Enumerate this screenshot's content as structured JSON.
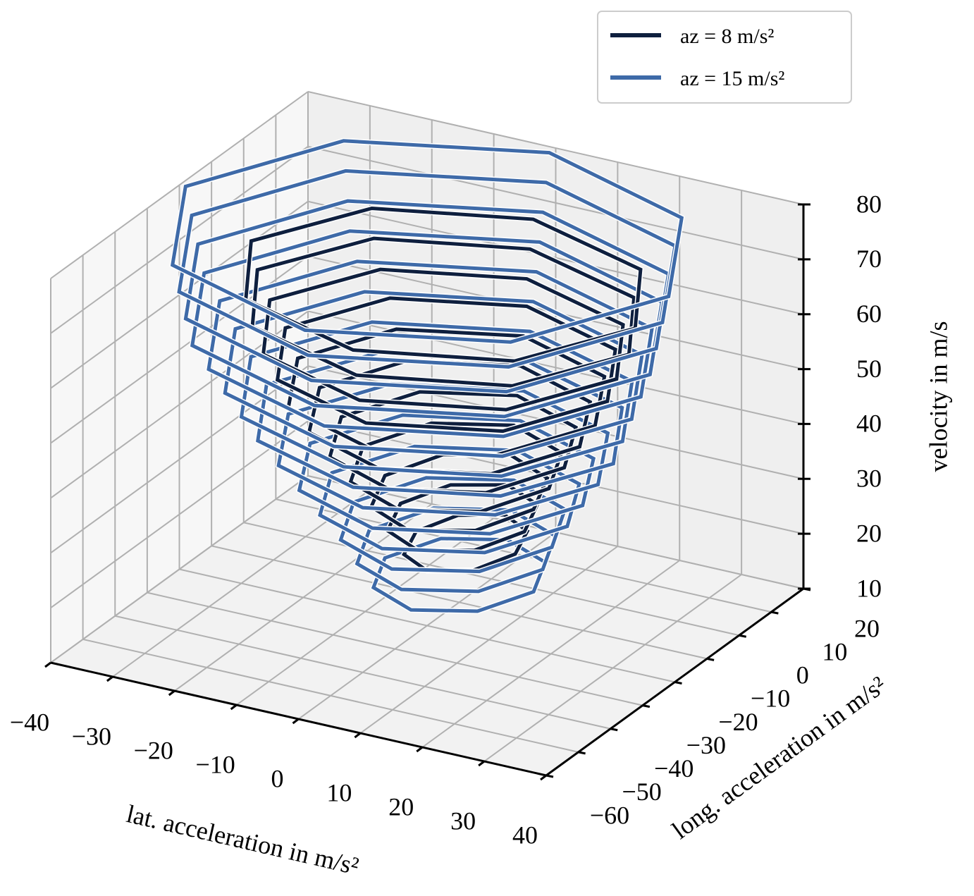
{
  "chart_data": {
    "type": "contour3d",
    "xlabel": "lat. acceleration in m/s²",
    "ylabel": "long. acceleration in m/s²",
    "zlabel": "velocity in m/s",
    "xlim": [
      -40,
      40
    ],
    "ylim": [
      -60,
      20
    ],
    "zlim": [
      10,
      80
    ],
    "xticks": [
      {
        "value": -40,
        "label": "−40"
      },
      {
        "value": -30,
        "label": "−30"
      },
      {
        "value": -20,
        "label": "−20"
      },
      {
        "value": -10,
        "label": "−10"
      },
      0,
      10,
      20,
      30,
      40
    ],
    "yticks": [
      {
        "value": -60,
        "label": "−60"
      },
      {
        "value": -50,
        "label": "−50"
      },
      {
        "value": -40,
        "label": "−40"
      },
      {
        "value": -30,
        "label": "−30"
      },
      {
        "value": -20,
        "label": "−20"
      },
      {
        "value": -10,
        "label": "−10"
      },
      0,
      10,
      20
    ],
    "zticks": [
      10,
      20,
      30,
      40,
      50,
      60,
      70,
      80
    ],
    "grid": true,
    "legend": "upper right",
    "series": [
      {
        "name": "az = 8 m/s²",
        "color": "#0e1f3e",
        "z": [
          20,
          25,
          30,
          35,
          40,
          45,
          50,
          55,
          60,
          65,
          70
        ],
        "x": [
          [
            8,
            5.6,
            0,
            -5.6,
            -8,
            -5.6,
            0,
            5.6
          ],
          [
            10,
            7,
            0,
            -7,
            -10,
            -7,
            0,
            7
          ],
          [
            12,
            8.4,
            0,
            -8.4,
            -12,
            -8.4,
            0,
            8.4
          ],
          [
            15,
            10.5,
            0,
            -10.5,
            -15,
            -10.5,
            0,
            10.5
          ],
          [
            18,
            12.6,
            0,
            -12.6,
            -18,
            -12.6,
            0,
            12.6
          ],
          [
            21,
            14.7,
            0,
            -14.7,
            -21,
            -14.7,
            0,
            14.7
          ],
          [
            24,
            16.8,
            0,
            -16.8,
            -24,
            -16.8,
            0,
            16.8
          ],
          [
            26,
            18.2,
            0,
            -18.2,
            -26,
            -18.2,
            0,
            18.2
          ],
          [
            28,
            19.6,
            0,
            -19.6,
            -28,
            -19.6,
            0,
            19.6
          ],
          [
            30,
            21,
            0,
            -21,
            -30,
            -21,
            0,
            21
          ],
          [
            31,
            21.7,
            0,
            -21.7,
            -31,
            -21.7,
            0,
            21.7
          ]
        ],
        "y": [
          [
            -8,
            0.4,
            4,
            0.4,
            -8,
            -16.4,
            -20,
            -16.4
          ],
          [
            -9,
            0.8,
            5,
            0.8,
            -9,
            -18.8,
            -23,
            -18.8
          ],
          [
            -10,
            1.2,
            6,
            1.2,
            -10,
            -21.2,
            -26,
            -21.2
          ],
          [
            -11,
            1.6,
            7,
            1.6,
            -11,
            -23.6,
            -29,
            -23.6
          ],
          [
            -12,
            2,
            8,
            2,
            -12,
            -26,
            -32,
            -26
          ],
          [
            -13,
            2.4,
            9,
            2.4,
            -13,
            -28.4,
            -35,
            -28.4
          ],
          [
            -14,
            2.8,
            10,
            2.8,
            -14,
            -30.8,
            -38,
            -30.8
          ],
          [
            -14,
            3.5,
            11,
            3.5,
            -14,
            -31.5,
            -39,
            -31.5
          ],
          [
            -15,
            3.2,
            11,
            3.2,
            -15,
            -33.2,
            -41,
            -33.2
          ],
          [
            -15,
            3.9,
            12,
            3.9,
            -15,
            -33.9,
            -42,
            -33.9
          ],
          [
            -15,
            4.6,
            13,
            4.6,
            -15,
            -34.6,
            -43,
            -34.6
          ]
        ]
      },
      {
        "name": "az = 15 m/s²",
        "color": "#3e6aa8",
        "z": [
          15,
          20,
          25,
          30,
          35,
          40,
          45,
          50,
          55,
          60,
          65,
          70,
          75,
          80
        ],
        "x": [
          [
            12,
            8.4,
            0,
            -8.4,
            -12,
            -8.4,
            0,
            8.4
          ],
          [
            14,
            9.8,
            0,
            -9.8,
            -14,
            -9.8,
            0,
            9.8
          ],
          [
            16,
            11.2,
            0,
            -11.2,
            -16,
            -11.2,
            0,
            11.2
          ],
          [
            19,
            13.3,
            0,
            -13.3,
            -19,
            -13.3,
            0,
            13.3
          ],
          [
            22,
            15.4,
            0,
            -15.4,
            -22,
            -15.4,
            0,
            15.4
          ],
          [
            25,
            17.5,
            0,
            -17.5,
            -25,
            -17.5,
            0,
            17.5
          ],
          [
            28,
            19.6,
            0,
            -19.6,
            -28,
            -19.6,
            0,
            19.6
          ],
          [
            30,
            21,
            0,
            -21,
            -30,
            -21,
            0,
            21
          ],
          [
            32,
            22.4,
            0,
            -22.4,
            -32,
            -22.4,
            0,
            22.4
          ],
          [
            34,
            23.8,
            0,
            -23.8,
            -34,
            -23.8,
            0,
            23.8
          ],
          [
            36,
            25.2,
            0,
            -25.2,
            -36,
            -25.2,
            0,
            25.2
          ],
          [
            37,
            25.9,
            0,
            -25.9,
            -37,
            -25.9,
            0,
            25.9
          ],
          [
            38,
            26.6,
            0,
            -26.6,
            -38,
            -26.6,
            0,
            26.6
          ],
          [
            39,
            27.3,
            0,
            -27.3,
            -39,
            -27.3,
            0,
            27.3
          ]
        ],
        "y": [
          [
            -10,
            0.5,
            5,
            0.5,
            -10,
            -20.5,
            -25,
            -20.5
          ],
          [
            -11,
            0.9,
            6,
            0.9,
            -11,
            -22.9,
            -28,
            -22.9
          ],
          [
            -12,
            1.3,
            7,
            1.3,
            -12,
            -25.3,
            -31,
            -25.3
          ],
          [
            -13,
            1.7,
            8,
            1.7,
            -13,
            -27.7,
            -34,
            -27.7
          ],
          [
            -14,
            2.1,
            9,
            2.1,
            -14,
            -30.1,
            -37,
            -30.1
          ],
          [
            -15,
            2.5,
            10,
            2.5,
            -15,
            -32.5,
            -40,
            -32.5
          ],
          [
            -16,
            2.9,
            11,
            2.9,
            -16,
            -34.9,
            -43,
            -34.9
          ],
          [
            -17,
            3.3,
            12,
            3.3,
            -17,
            -37.3,
            -46,
            -37.3
          ],
          [
            -18,
            3.7,
            13,
            3.7,
            -18,
            -39.7,
            -49,
            -39.7
          ],
          [
            -19,
            4.1,
            14,
            4.1,
            -19,
            -42.1,
            -52,
            -42.1
          ],
          [
            -20,
            4.5,
            15,
            4.5,
            -20,
            -44.5,
            -55,
            -44.5
          ],
          [
            -20,
            5.2,
            16,
            5.2,
            -20,
            -45.2,
            -56,
            -45.2
          ],
          [
            -20,
            5.9,
            17,
            5.9,
            -20,
            -45.9,
            -57,
            -45.9
          ],
          [
            -20,
            6.6,
            18,
            6.6,
            -20,
            -46.6,
            -58,
            -46.6
          ]
        ]
      }
    ]
  }
}
